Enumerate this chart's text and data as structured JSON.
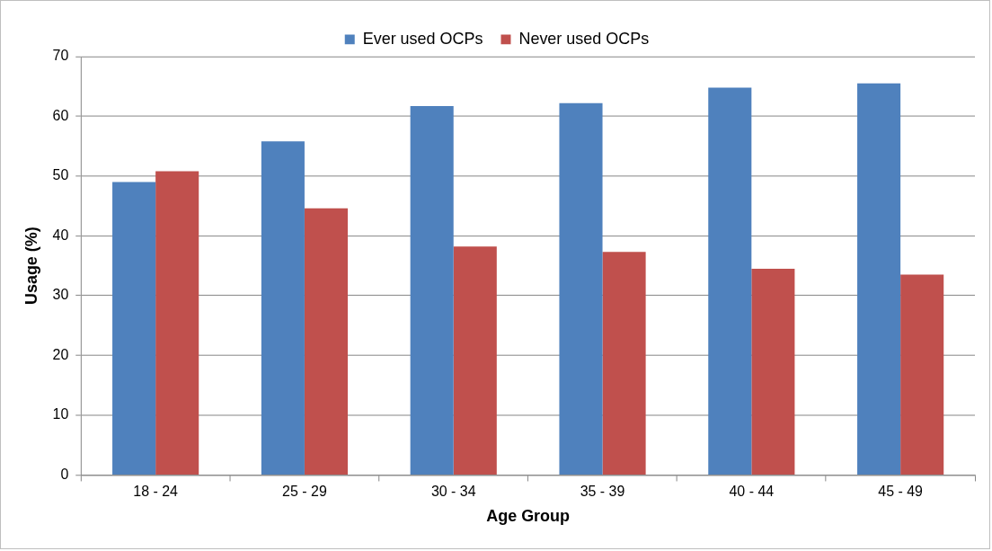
{
  "chart_data": {
    "type": "bar",
    "xlabel": "Age Group",
    "ylabel": "Usage (%)",
    "categories": [
      "18 - 24",
      "25 - 29",
      "30 - 34",
      "35 - 39",
      "40 - 44",
      "45 - 49"
    ],
    "series": [
      {
        "name": "Ever used OCPs",
        "color": "#4f81bd",
        "values": [
          49,
          55.8,
          61.7,
          62.2,
          64.8,
          65.5
        ]
      },
      {
        "name": "Never used OCPs",
        "color": "#c0504d",
        "values": [
          50.8,
          44.6,
          38.2,
          37.3,
          34.5,
          33.5
        ]
      }
    ],
    "ylim": [
      0,
      70
    ],
    "yticks": [
      0,
      10,
      20,
      30,
      40,
      50,
      60,
      70
    ],
    "grid": "y",
    "legend": "top"
  }
}
